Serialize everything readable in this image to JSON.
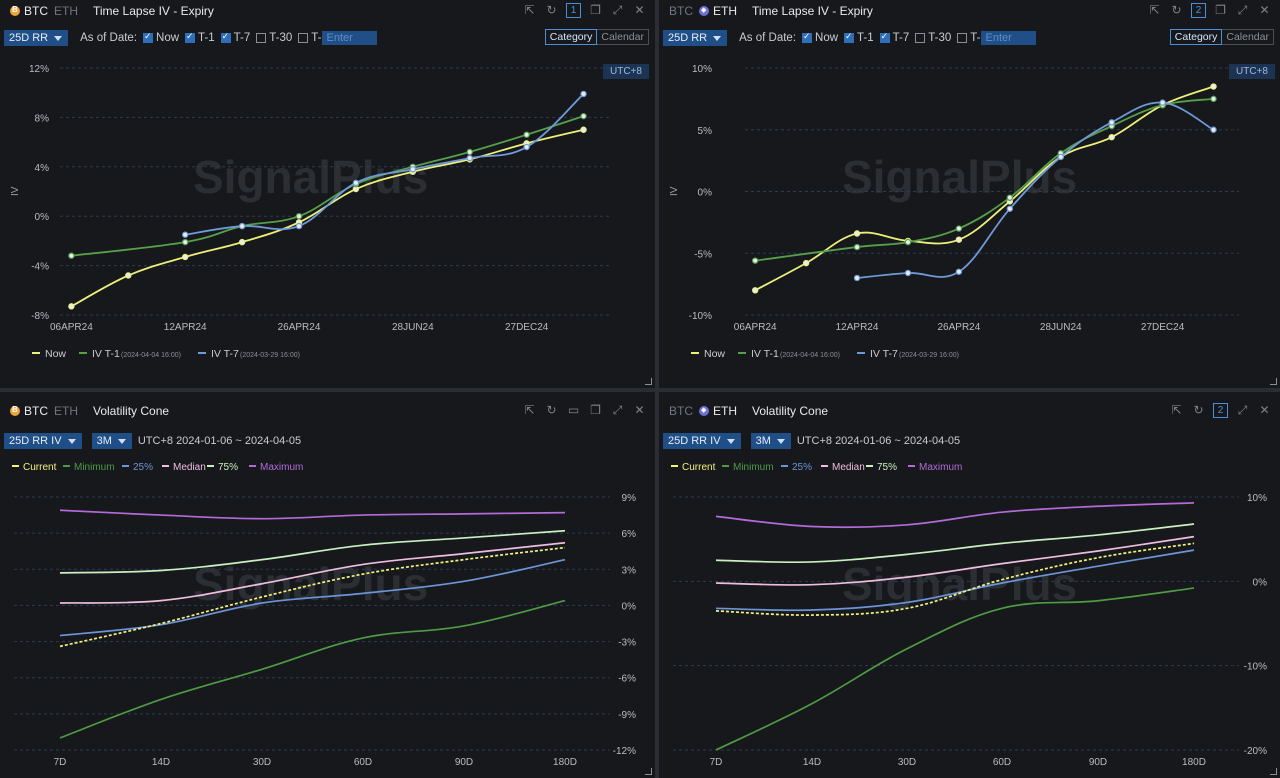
{
  "colors": {
    "now": "#ecf07a",
    "t1": "#56a04a",
    "t7": "#6f9ad8",
    "current": "#f3f37a",
    "minimum": "#4f9a45",
    "p25": "#6c95d8",
    "median": "#efbde0",
    "p75": "#c8f0c0",
    "maximum": "#b56ad9"
  },
  "panels": [
    {
      "id": "p1",
      "coins": {
        "btc": "BTC",
        "eth": "ETH",
        "active": "btc"
      },
      "title": "Time Lapse IV - Expiry",
      "panel_no": "1",
      "toolbar": {
        "select": "25D RR",
        "as_of": "As of Date:",
        "now": "Now",
        "t1": "T-1",
        "t7": "T-7",
        "t30": "T-30",
        "tx": "T-",
        "enter_placeholder": "Enter",
        "category": "Category",
        "calendar": "Calendar"
      },
      "utc": "UTC+8",
      "watermark": "SignalPlus",
      "legend": {
        "now": "Now",
        "t1": "IV T-1",
        "t1_date": "(2024-04-04 16:00)",
        "t7": "IV T-7",
        "t7_date": "(2024-03-29 16:00)"
      },
      "chart_data": {
        "type": "line",
        "title": "Time Lapse IV - Expiry",
        "ylabel": "IV",
        "ylim": [
          -8,
          12
        ],
        "yticks": [
          -8,
          -4,
          0,
          4,
          8,
          12
        ],
        "ytick_labels": [
          "-8%",
          "-4%",
          "0%",
          "4%",
          "8%",
          "12%"
        ],
        "x_ticks": [
          0,
          2,
          4,
          6,
          8
        ],
        "x_tick_labels": [
          "06APR24",
          "12APR24",
          "26APR24",
          "28JUN24",
          "27DEC24"
        ],
        "xlim": [
          -0.2,
          9.5
        ],
        "series": [
          {
            "name": "Now",
            "color_key": "now",
            "x": [
              0,
              1,
              2,
              3,
              4,
              5,
              6,
              7,
              8,
              9
            ],
            "y": [
              -7.3,
              -4.8,
              -3.3,
              -2.1,
              -0.5,
              2.2,
              3.6,
              4.6,
              5.9,
              7.0
            ]
          },
          {
            "name": "IV T-1",
            "color_key": "t1",
            "x": [
              0,
              2,
              3,
              4,
              5,
              6,
              7,
              8,
              9
            ],
            "y": [
              -3.2,
              -2.1,
              -0.8,
              0.0,
              2.6,
              4.0,
              5.2,
              6.6,
              8.1
            ]
          },
          {
            "name": "IV T-7",
            "color_key": "t7",
            "x": [
              2,
              3,
              4,
              5,
              6,
              7,
              8,
              9
            ],
            "y": [
              -1.5,
              -0.8,
              -0.8,
              2.7,
              3.8,
              4.7,
              5.6,
              9.9
            ]
          }
        ]
      }
    },
    {
      "id": "p2",
      "coins": {
        "btc": "BTC",
        "eth": "ETH",
        "active": "eth"
      },
      "title": "Time Lapse IV - Expiry",
      "panel_no": "2",
      "toolbar": {
        "select": "25D RR",
        "as_of": "As of Date:",
        "now": "Now",
        "t1": "T-1",
        "t7": "T-7",
        "t30": "T-30",
        "tx": "T-",
        "enter_placeholder": "Enter",
        "category": "Category",
        "calendar": "Calendar"
      },
      "utc": "UTC+8",
      "watermark": "SignalPlus",
      "legend": {
        "now": "Now",
        "t1": "IV T-1",
        "t1_date": "(2024-04-04 16:00)",
        "t7": "IV T-7",
        "t7_date": "(2024-03-29 16:00)"
      },
      "chart_data": {
        "type": "line",
        "title": "Time Lapse IV - Expiry",
        "ylabel": "IV",
        "ylim": [
          -10,
          10
        ],
        "yticks": [
          -10,
          -5,
          0,
          5,
          10
        ],
        "ytick_labels": [
          "-10%",
          "-5%",
          "0%",
          "5%",
          "10%"
        ],
        "x_ticks": [
          0,
          2,
          4,
          6,
          8
        ],
        "x_tick_labels": [
          "06APR24",
          "12APR24",
          "26APR24",
          "28JUN24",
          "27DEC24"
        ],
        "xlim": [
          -0.2,
          9.5
        ],
        "series": [
          {
            "name": "Now",
            "color_key": "now",
            "x": [
              0,
              1,
              2,
              3,
              4,
              5,
              6,
              7,
              8,
              9
            ],
            "y": [
              -8.0,
              -5.8,
              -3.4,
              -4.0,
              -3.9,
              -0.8,
              2.8,
              4.4,
              7.0,
              8.5
            ]
          },
          {
            "name": "IV T-1",
            "color_key": "t1",
            "x": [
              0,
              2,
              3,
              4,
              5,
              6,
              7,
              8,
              9
            ],
            "y": [
              -5.6,
              -4.5,
              -4.1,
              -3.0,
              -0.5,
              3.1,
              5.3,
              7.0,
              7.5
            ]
          },
          {
            "name": "IV T-7",
            "color_key": "t7",
            "x": [
              2,
              3,
              4,
              5,
              6,
              7,
              8,
              9
            ],
            "y": [
              -7.0,
              -6.6,
              -6.5,
              -1.4,
              2.8,
              5.6,
              7.2,
              5.0
            ]
          }
        ]
      }
    },
    {
      "id": "p3",
      "coins": {
        "btc": "BTC",
        "eth": "ETH",
        "active": "btc"
      },
      "title": "Volatility Cone",
      "toolbar": {
        "select": "25D RR IV",
        "tenor": "3M",
        "range": "UTC+8 2024-01-06 ~ 2024-04-05"
      },
      "watermark": "SignalPlus",
      "legend": {
        "current": "Current",
        "minimum": "Minimum",
        "p25": "25%",
        "median": "Median",
        "p75": "75%",
        "maximum": "Maximum"
      },
      "chart_data": {
        "type": "line",
        "title": "Volatility Cone",
        "ylim": [
          -12,
          9
        ],
        "yticks": [
          -12,
          -9,
          -6,
          -3,
          0,
          3,
          6,
          9
        ],
        "ytick_labels": [
          "-12%",
          "-9%",
          "-6%",
          "-3%",
          "0%",
          "3%",
          "6%",
          "9%"
        ],
        "categories": [
          "7D",
          "14D",
          "30D",
          "60D",
          "90D",
          "180D"
        ],
        "series": [
          {
            "name": "Current",
            "color_key": "current",
            "dashed": true,
            "values": [
              -3.4,
              -1.5,
              0.7,
              2.6,
              3.8,
              4.8
            ]
          },
          {
            "name": "Minimum",
            "color_key": "minimum",
            "values": [
              -11.0,
              -7.8,
              -5.3,
              -2.7,
              -1.7,
              0.4
            ]
          },
          {
            "name": "25%",
            "color_key": "p25",
            "values": [
              -2.5,
              -1.6,
              0.2,
              1.0,
              2.0,
              3.8
            ]
          },
          {
            "name": "Median",
            "color_key": "median",
            "values": [
              0.2,
              0.4,
              1.8,
              3.4,
              4.3,
              5.2
            ]
          },
          {
            "name": "75%",
            "color_key": "p75",
            "values": [
              2.7,
              2.9,
              3.8,
              5.0,
              5.6,
              6.2
            ]
          },
          {
            "name": "Maximum",
            "color_key": "maximum",
            "values": [
              7.9,
              7.5,
              7.2,
              7.5,
              7.6,
              7.7
            ]
          }
        ]
      }
    },
    {
      "id": "p4",
      "coins": {
        "btc": "BTC",
        "eth": "ETH",
        "active": "eth"
      },
      "title": "Volatility Cone",
      "panel_no": "2",
      "toolbar": {
        "select": "25D RR IV",
        "tenor": "3M",
        "range": "UTC+8 2024-01-06 ~ 2024-04-05"
      },
      "watermark": "SignalPlus",
      "legend": {
        "current": "Current",
        "minimum": "Minimum",
        "p25": "25%",
        "median": "Median",
        "p75": "75%",
        "maximum": "Maximum"
      },
      "chart_data": {
        "type": "line",
        "title": "Volatility Cone",
        "ylim": [
          -20,
          10
        ],
        "yticks": [
          -20,
          -10,
          0,
          10
        ],
        "ytick_labels": [
          "-20%",
          "-10%",
          "0%",
          "10%"
        ],
        "categories": [
          "7D",
          "14D",
          "30D",
          "60D",
          "90D",
          "180D"
        ],
        "series": [
          {
            "name": "Current",
            "color_key": "current",
            "dashed": true,
            "values": [
              -3.5,
              -4.0,
              -3.2,
              0.2,
              2.8,
              4.5
            ]
          },
          {
            "name": "Minimum",
            "color_key": "minimum",
            "values": [
              -20.0,
              -14.5,
              -8.0,
              -3.2,
              -2.3,
              -0.8
            ]
          },
          {
            "name": "25%",
            "color_key": "p25",
            "values": [
              -3.2,
              -3.4,
              -2.5,
              -0.2,
              1.8,
              3.7
            ]
          },
          {
            "name": "Median",
            "color_key": "median",
            "values": [
              -0.2,
              -0.4,
              0.5,
              2.1,
              3.6,
              5.3
            ]
          },
          {
            "name": "75%",
            "color_key": "p75",
            "values": [
              2.5,
              2.3,
              3.2,
              4.5,
              5.5,
              6.8
            ]
          },
          {
            "name": "Maximum",
            "color_key": "maximum",
            "values": [
              7.7,
              6.5,
              6.7,
              8.2,
              8.9,
              9.3
            ]
          }
        ]
      }
    }
  ]
}
